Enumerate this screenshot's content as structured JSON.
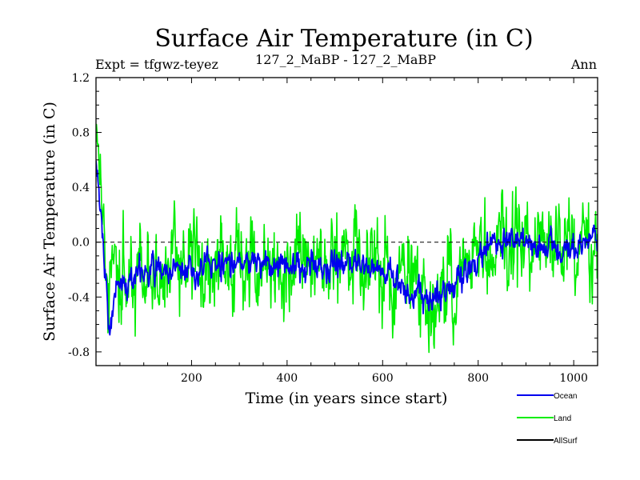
{
  "chart_data": {
    "type": "line",
    "title": "Surface Air Temperature (in C)",
    "subtitle_left": "Expt = tfgwz-teyez",
    "subtitle_center": "127_2_MaBP - 127_2_MaBP",
    "subtitle_right": "Ann",
    "xlabel": "Time (in years since start)",
    "ylabel": "Surface Air Temperature (in C)",
    "xlim": [
      0,
      1050
    ],
    "ylim": [
      -0.9,
      1.2
    ],
    "xticks": [
      200,
      400,
      600,
      800,
      1000
    ],
    "yticks": [
      -0.8,
      -0.4,
      0.0,
      0.4,
      0.8,
      1.2
    ],
    "ytick_labels": [
      "-0.8",
      "-0.4",
      "0.0",
      "0.4",
      "0.8",
      "1.2"
    ],
    "zero_line": 0.0,
    "grid": false,
    "legend_position": "bottom-right",
    "series": [
      {
        "name": "Land",
        "color": "#00ee00",
        "segments": [
          {
            "year": 0,
            "mean": 0.9
          },
          {
            "year": 10,
            "mean": 0.4
          },
          {
            "year": 25,
            "mean": -0.45
          },
          {
            "year": 40,
            "mean": -0.3
          },
          {
            "year": 100,
            "mean": -0.22
          },
          {
            "year": 200,
            "mean": -0.18
          },
          {
            "year": 300,
            "mean": -0.12
          },
          {
            "year": 400,
            "mean": -0.15
          },
          {
            "year": 500,
            "mean": -0.12
          },
          {
            "year": 580,
            "mean": -0.15
          },
          {
            "year": 650,
            "mean": -0.3
          },
          {
            "year": 700,
            "mean": -0.4
          },
          {
            "year": 760,
            "mean": -0.25
          },
          {
            "year": 800,
            "mean": -0.1
          },
          {
            "year": 830,
            "mean": 0.02
          },
          {
            "year": 900,
            "mean": 0.0
          },
          {
            "year": 1000,
            "mean": -0.05
          },
          {
            "year": 1050,
            "mean": 0.0
          }
        ],
        "noise_amplitude": 0.2,
        "range": [
          -0.9,
          1.0
        ]
      },
      {
        "name": "Ocean",
        "color": "#0000ee",
        "segments": [
          {
            "year": 0,
            "mean": 0.6
          },
          {
            "year": 10,
            "mean": 0.2
          },
          {
            "year": 28,
            "mean": -0.7
          },
          {
            "year": 40,
            "mean": -0.35
          },
          {
            "year": 100,
            "mean": -0.22
          },
          {
            "year": 200,
            "mean": -0.2
          },
          {
            "year": 300,
            "mean": -0.15
          },
          {
            "year": 400,
            "mean": -0.17
          },
          {
            "year": 500,
            "mean": -0.15
          },
          {
            "year": 580,
            "mean": -0.15
          },
          {
            "year": 650,
            "mean": -0.35
          },
          {
            "year": 700,
            "mean": -0.42
          },
          {
            "year": 760,
            "mean": -0.3
          },
          {
            "year": 800,
            "mean": -0.15
          },
          {
            "year": 830,
            "mean": 0.02
          },
          {
            "year": 900,
            "mean": 0.0
          },
          {
            "year": 1000,
            "mean": -0.05
          },
          {
            "year": 1050,
            "mean": 0.02
          }
        ],
        "noise_amplitude": 0.08,
        "range": [
          -0.7,
          0.6
        ]
      },
      {
        "name": "AllSurf",
        "color": "#000000",
        "segments": [],
        "noise_amplitude": 0,
        "range": null
      }
    ],
    "legend": [
      {
        "name": "Ocean",
        "color": "#0000ee"
      },
      {
        "name": "Land",
        "color": "#00ee00"
      },
      {
        "name": "AllSurf",
        "color": "#000000"
      }
    ]
  }
}
